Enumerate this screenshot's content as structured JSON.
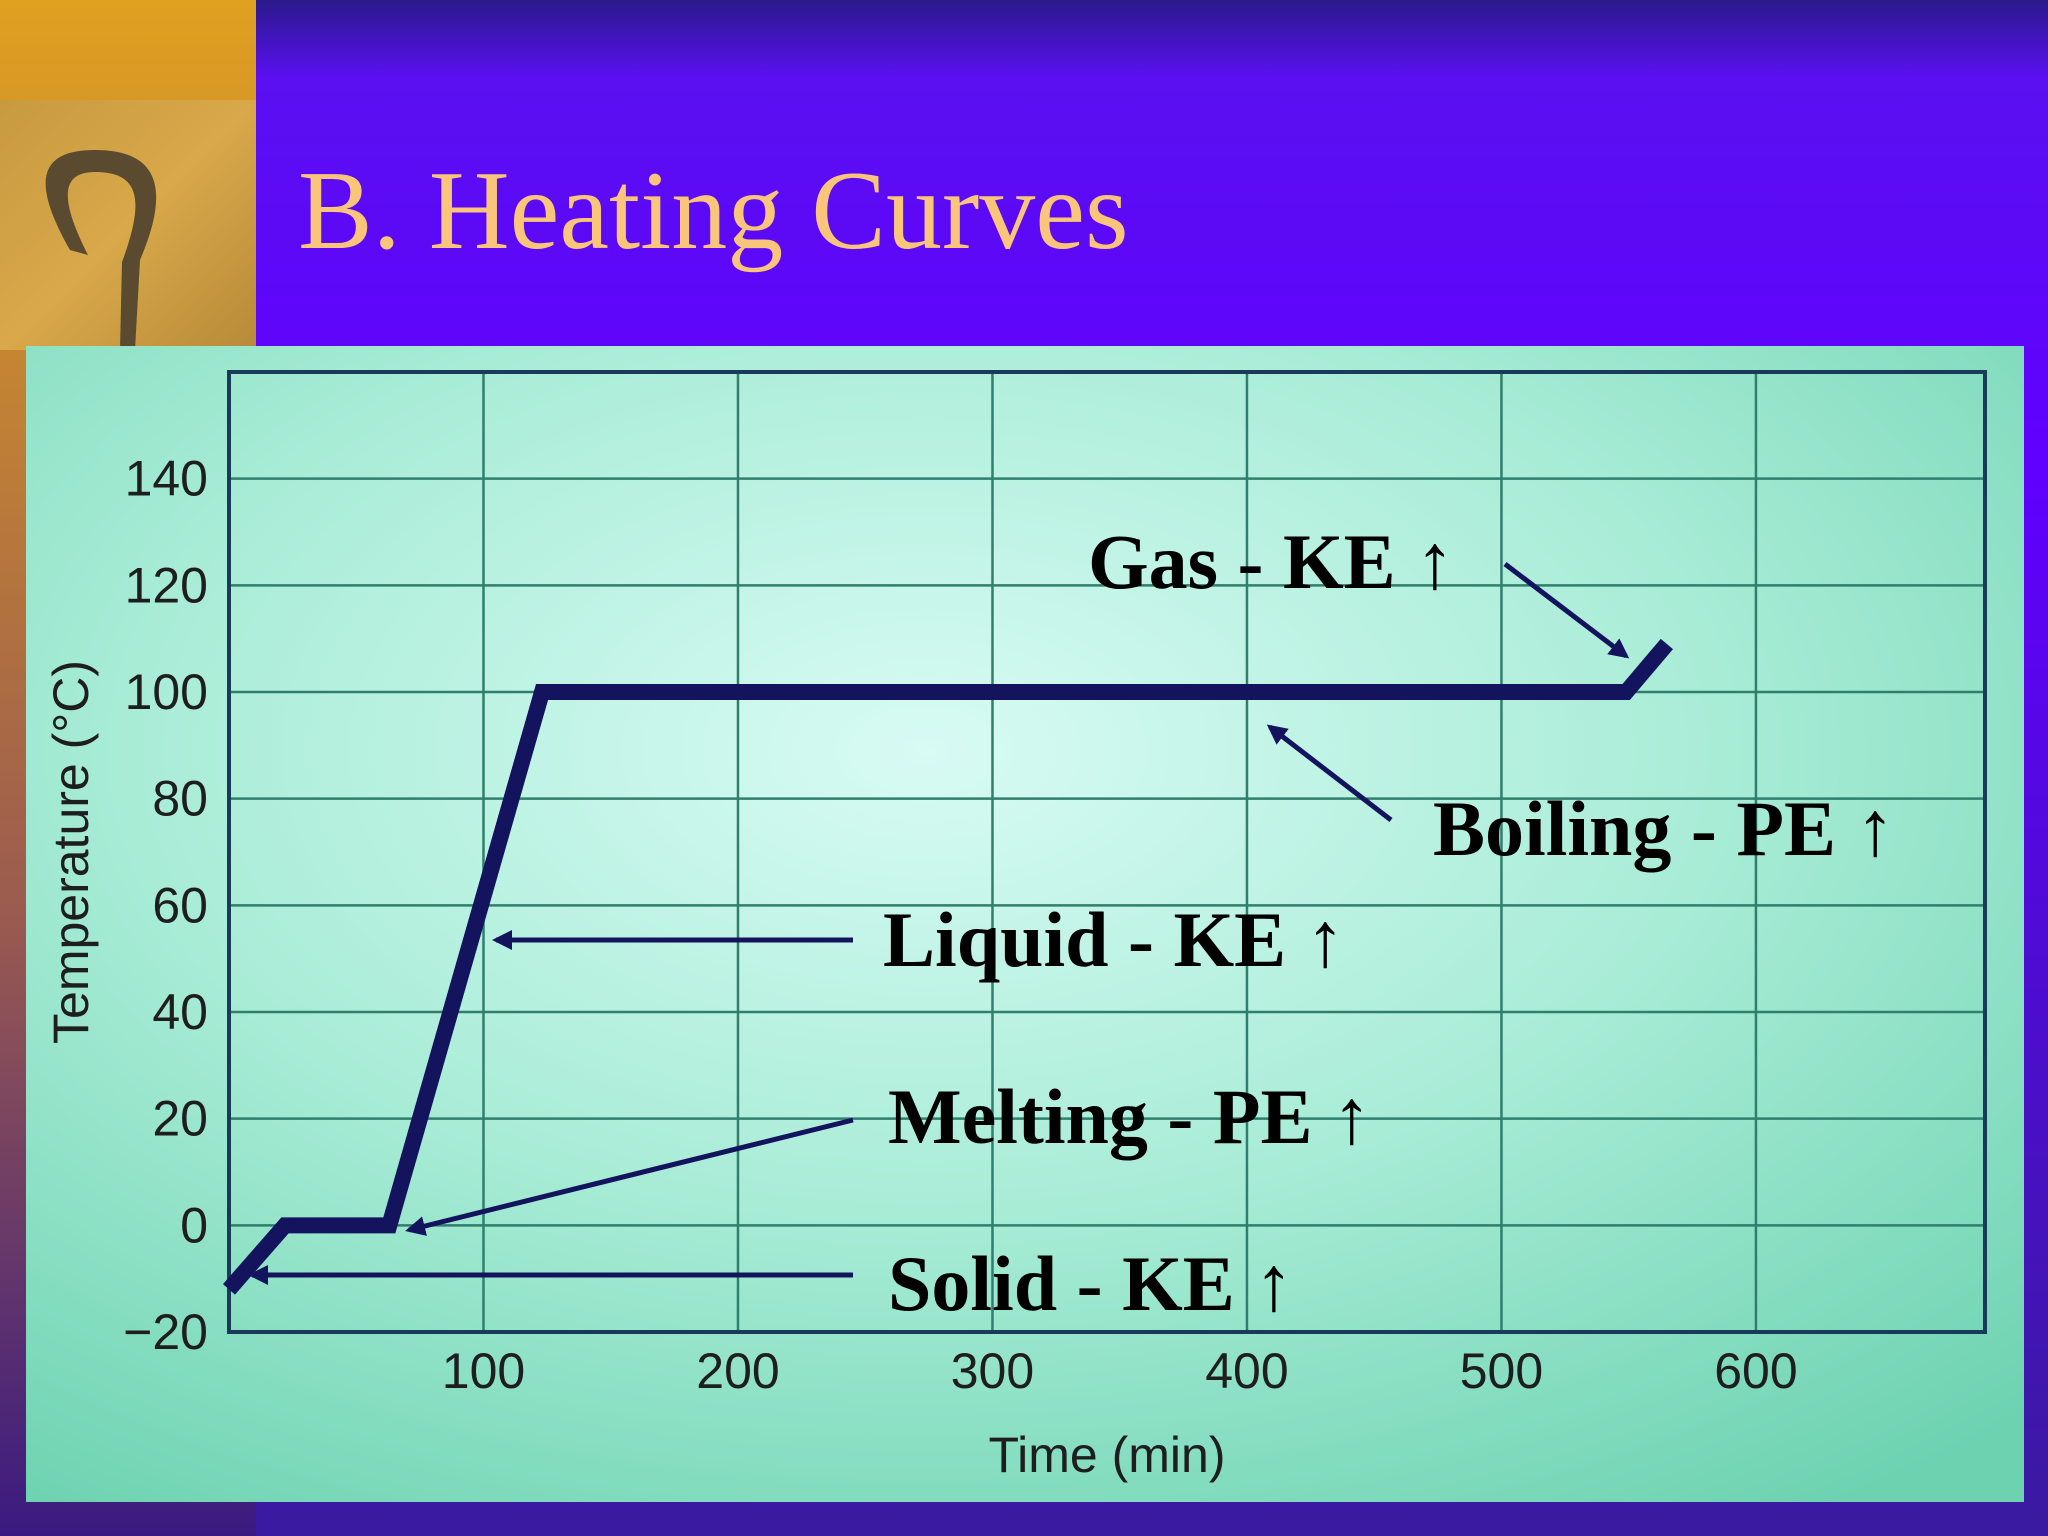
{
  "chart_data": {
    "type": "line",
    "title": "B. Heating Curves",
    "xlabel": "Time (min)",
    "ylabel": "Temperature (°C)",
    "x": [
      0,
      22,
      63,
      123,
      549,
      565
    ],
    "values": [
      -12,
      0,
      0,
      100,
      100,
      109
    ],
    "color": "#14145e",
    "xlim": [
      0,
      690
    ],
    "ylim": [
      -20,
      160
    ],
    "xticks": [
      100,
      200,
      300,
      400,
      500,
      600
    ],
    "yticks": [
      {
        "value": -20,
        "label": "−20"
      },
      0,
      20,
      40,
      60,
      80,
      100,
      120,
      140
    ],
    "grid": true,
    "annotations": [
      "Gas - KE ↑",
      "Boiling - PE ↑",
      "Liquid - KE ↑",
      "Melting - PE ↑",
      "Solid - KE ↑"
    ]
  }
}
